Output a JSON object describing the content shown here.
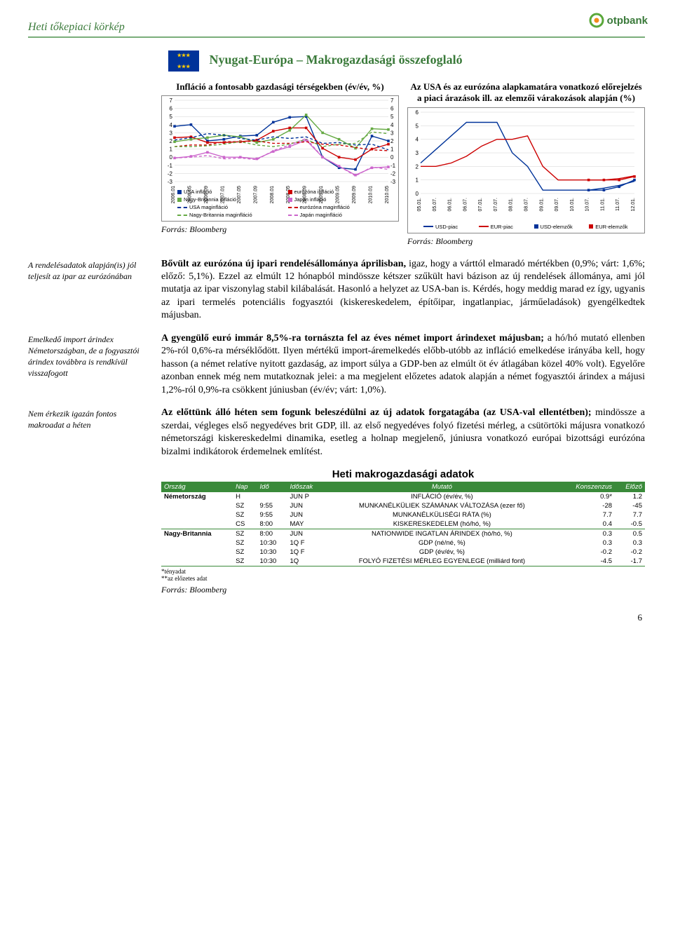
{
  "header": {
    "title": "Heti tőkepiaci körkép",
    "logo_text": "otpbank"
  },
  "section_title": "Nyugat-Európa – Makrogazdasági összefoglaló",
  "chart_left": {
    "type": "line",
    "title": "Infláció a fontosabb gazdasági térségekben (év/év, %)",
    "source": "Forrás: Bloomberg",
    "ylim": [
      -3,
      7
    ],
    "ytick_step": 1,
    "x_categories": [
      "2006.01",
      "2006.05",
      "2006.09",
      "2007.01",
      "2007.05",
      "2007.09",
      "2008.01",
      "2008.05",
      "2008.09",
      "2009.01",
      "2009.05",
      "2009.09",
      "2010.01",
      "2010.05"
    ],
    "series": [
      {
        "name": "USA infláció",
        "color": "#003399",
        "dash": "none",
        "marker": "square",
        "values": [
          3.8,
          4.0,
          2.0,
          2.2,
          2.6,
          2.7,
          4.3,
          4.9,
          5.0,
          0.0,
          -1.3,
          -1.5,
          2.6,
          2.0
        ]
      },
      {
        "name": "eurózóna infláció",
        "color": "#cc0000",
        "dash": "none",
        "marker": "square",
        "values": [
          2.4,
          2.5,
          1.8,
          1.8,
          1.9,
          2.1,
          3.2,
          3.6,
          3.6,
          1.1,
          0.0,
          -0.3,
          1.0,
          1.6
        ]
      },
      {
        "name": "Nagy-Britannia infláció",
        "color": "#66aa44",
        "dash": "none",
        "marker": "square",
        "values": [
          1.9,
          2.2,
          2.4,
          2.7,
          2.5,
          1.8,
          2.2,
          3.3,
          5.2,
          3.0,
          2.2,
          1.1,
          3.5,
          3.4
        ]
      },
      {
        "name": "Japán infláció",
        "color": "#cc66cc",
        "dash": "none",
        "marker": "square",
        "values": [
          -0.1,
          0.1,
          0.6,
          0.0,
          0.0,
          -0.2,
          0.7,
          1.3,
          2.1,
          0.0,
          -1.1,
          -2.2,
          -1.3,
          -1.2
        ]
      },
      {
        "name": "USA maginfláció",
        "color": "#003399",
        "dash": "4,3",
        "marker": "none",
        "values": [
          2.1,
          2.4,
          2.9,
          2.7,
          2.3,
          2.1,
          2.5,
          2.3,
          2.5,
          1.7,
          1.8,
          1.5,
          1.6,
          0.9
        ]
      },
      {
        "name": "eurózóna maginfláció",
        "color": "#cc0000",
        "dash": "4,3",
        "marker": "none",
        "values": [
          1.3,
          1.5,
          1.5,
          1.9,
          1.9,
          2.0,
          1.7,
          1.7,
          1.9,
          1.6,
          1.5,
          1.2,
          0.9,
          0.8
        ]
      },
      {
        "name": "Nagy-Britannia maginfláció",
        "color": "#66aa44",
        "dash": "4,3",
        "marker": "none",
        "values": [
          1.3,
          1.3,
          1.4,
          1.6,
          1.9,
          1.5,
          1.3,
          1.6,
          2.2,
          1.3,
          1.6,
          1.7,
          3.1,
          2.9
        ]
      },
      {
        "name": "Japán maginfláció",
        "color": "#cc66cc",
        "dash": "4,3",
        "marker": "none",
        "values": [
          -0.1,
          0.0,
          0.2,
          -0.2,
          -0.1,
          -0.3,
          0.8,
          1.5,
          2.3,
          0.0,
          -1.1,
          -2.3,
          -1.2,
          -1.5
        ]
      }
    ],
    "background_color": "#ffffff",
    "grid_color": "#d0d0d0",
    "axis_fontsize": 8
  },
  "chart_right": {
    "type": "line",
    "title": "Az USA és az eurózóna alapkamatára vonatkozó előrejelzés a piaci árazások ill. az elemzői várakozások alapján (%)",
    "source": "Forrás: Bloomberg",
    "ylim": [
      0,
      6
    ],
    "ytick_step": 1,
    "x_categories": [
      "05.01.",
      "05.07.",
      "06.01.",
      "06.07.",
      "07.01.",
      "07.07.",
      "08.01.",
      "08.07.",
      "09.01.",
      "09.07.",
      "10.01.",
      "10.07.",
      "11.01.",
      "11.07.",
      "12.01."
    ],
    "forecast_start_index": 11,
    "series": [
      {
        "name": "USD-piac",
        "color": "#003399",
        "dash": "none",
        "marker": "none",
        "values": [
          2.25,
          3.25,
          4.25,
          5.25,
          5.25,
          5.25,
          3.0,
          2.0,
          0.25,
          0.25,
          0.25,
          0.25,
          0.4,
          0.6,
          0.9
        ]
      },
      {
        "name": "EUR-piac",
        "color": "#cc0000",
        "dash": "none",
        "marker": "none",
        "values": [
          2.0,
          2.0,
          2.25,
          2.75,
          3.5,
          4.0,
          4.0,
          4.25,
          2.0,
          1.0,
          1.0,
          1.0,
          1.0,
          1.1,
          1.3
        ]
      },
      {
        "name": "USD-elemzők",
        "color": "#003399",
        "dash": "none",
        "marker": "square",
        "values": [
          null,
          null,
          null,
          null,
          null,
          null,
          null,
          null,
          null,
          null,
          null,
          0.25,
          0.25,
          0.5,
          1.0
        ]
      },
      {
        "name": "EUR-elemzők",
        "color": "#cc0000",
        "dash": "none",
        "marker": "square",
        "values": [
          null,
          null,
          null,
          null,
          null,
          null,
          null,
          null,
          null,
          null,
          null,
          1.0,
          1.0,
          1.0,
          1.25
        ]
      }
    ],
    "background_color": "#ffffff",
    "grid_color": "#d0d0d0",
    "axis_fontsize": 8
  },
  "paragraphs": [
    {
      "margin": "A rendelésadatok alapján(is) jól teljesít az ipar az eurózónában",
      "text": "Bővült az eurózóna új ipari rendelésállománya áprilisban, igaz, hogy a várttól elmaradó mértékben (0,9%; várt: 1,6%; előző: 5,1%). Ezzel az elmúlt 12 hónapból mindössze kétszer szűkült havi bázison az új rendelések állománya, ami jól mutatja az ipar viszonylag stabil kilábalását. Hasonló a helyzet az USA-ban is. Kérdés, hogy meddig marad ez így, ugyanis az ipari termelés potenciális fogyasztói (kiskereskedelem, építőipar, ingatlanpiac, járműeladások) gyengélkedtek májusban.",
      "bold_prefix": "Bővült az eurózóna új ipari rendelésállománya áprilisban,"
    },
    {
      "margin": "Emelkedő import árindex Németországban, de a fogyasztói árindex továbbra is rendkívül visszafogott",
      "text": "A gyengülő euró immár 8,5%-ra tornászta fel az éves német import árindexet májusban; a hó/hó mutató ellenben 2%-ról 0,6%-ra mérséklődött. Ilyen mértékű import-áremelkedés előbb-utóbb az infláció emelkedése irányába kell, hogy hasson (a német relatíve nyitott gazdaság, az import súlya a GDP-ben az elmúlt öt év átlagában közel 40% volt). Egyelőre azonban ennek még nem mutatkoznak jelei: a ma megjelent előzetes adatok alapján a német fogyasztói árindex a májusi 1,2%-ról 0,9%-ra csökkent júniusban (év/év; várt: 1,0%).",
      "bold_prefix": "A gyengülő euró immár 8,5%-ra tornászta fel az éves német import árindexet májusban;"
    },
    {
      "margin": "Nem érkezik igazán fontos makroadat a héten",
      "text": "Az előttünk álló héten sem fogunk beleszédülni az új adatok forgatagába (az USA-val ellentétben); mindössze a szerdai, végleges első negyedéves brit GDP, ill. az első negyedéves folyó fizetési mérleg, a csütörtöki májusra vonatkozó németországi kiskereskedelmi dinamika, esetleg a holnap megjelenő, júniusra vonatkozó európai bizottsági eurózóna bizalmi indikátorok érdemelnek említést.",
      "bold_prefix": "Az előttünk álló héten sem fogunk beleszédülni az új adatok forgatagába (az USA-val ellentétben);"
    }
  ],
  "macro_table": {
    "title": "Heti makrogazdasági adatok",
    "columns": [
      "Ország",
      "Nap",
      "Idő",
      "Időszak",
      "Mutató",
      "Konszenzus",
      "Előző"
    ],
    "rows": [
      [
        "Németország",
        "H",
        "",
        "JUN P",
        "INFLÁCIÓ (év/év, %)",
        "0.9*",
        "1.2"
      ],
      [
        "",
        "SZ",
        "9:55",
        "JUN",
        "MUNKANÉLKÜLIEK SZÁMÁNAK VÁLTOZÁSA (ezer fő)",
        "-28",
        "-45"
      ],
      [
        "",
        "SZ",
        "9:55",
        "JUN",
        "MUNKANÉLKÜLISÉGI RÁTA (%)",
        "7.7",
        "7.7"
      ],
      [
        "",
        "CS",
        "8:00",
        "MAY",
        "KISKERESKEDELEM (hó/hó, %)",
        "0.4",
        "-0.5"
      ],
      [
        "Nagy-Britannia",
        "SZ",
        "8:00",
        "JUN",
        "NATIONWIDE INGATLAN ÁRINDEX (hó/hó, %)",
        "0.3",
        "0.5"
      ],
      [
        "",
        "SZ",
        "10:30",
        "1Q F",
        "GDP (né/né, %)",
        "0.3",
        "0.3"
      ],
      [
        "",
        "SZ",
        "10:30",
        "1Q F",
        "GDP (év/év, %)",
        "-0.2",
        "-0.2"
      ],
      [
        "",
        "SZ",
        "10:30",
        "1Q",
        "FOLYÓ FIZETÉSI MÉRLEG EGYENLEGE (milliárd font)",
        "-4.5",
        "-1.7"
      ]
    ],
    "footnotes": [
      "*tényadat",
      "**az előzetes adat"
    ],
    "source": "Forrás: Bloomberg"
  },
  "page_number": "6"
}
